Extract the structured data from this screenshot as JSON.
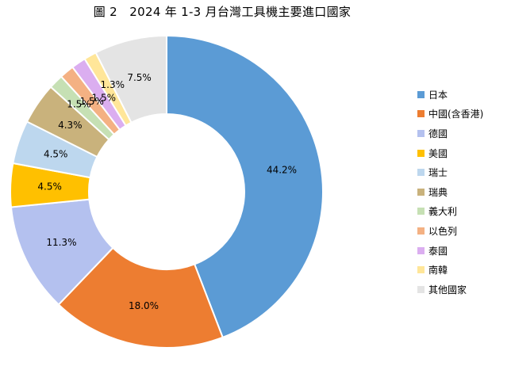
{
  "chart_data": {
    "type": "pie",
    "variant": "donut",
    "title": "圖 2　2024 年 1-3 月台灣工具機主要進口國家",
    "legend_position": "right",
    "slices": [
      {
        "name": "日本",
        "value": 44.2,
        "label": "44.2%",
        "color": "#5b9bd5"
      },
      {
        "name": "中國(含香港)",
        "value": 18.0,
        "label": "18.0%",
        "color": "#ed7d31"
      },
      {
        "name": "德國",
        "value": 11.3,
        "label": "11.3%",
        "color": "#b4c1ef"
      },
      {
        "name": "美國",
        "value": 4.5,
        "label": "4.5%",
        "color": "#ffc000"
      },
      {
        "name": "瑞士",
        "value": 4.5,
        "label": "4.5%",
        "color": "#bdd7ee"
      },
      {
        "name": "瑞典",
        "value": 4.3,
        "label": "4.3%",
        "color": "#c9b27c"
      },
      {
        "name": "義大利",
        "value": 1.5,
        "label": "1.5%",
        "color": "#c6e0b4"
      },
      {
        "name": "以色列",
        "value": 1.5,
        "label": "1.5%",
        "color": "#f4b183"
      },
      {
        "name": "泰國",
        "value": 1.5,
        "label": "1.5%",
        "color": "#dbaef0"
      },
      {
        "name": "南韓",
        "value": 1.3,
        "label": "1.3%",
        "color": "#ffe699"
      },
      {
        "name": "其他國家",
        "value": 7.5,
        "label": "7.5%",
        "color": "#e4e4e4"
      }
    ]
  }
}
